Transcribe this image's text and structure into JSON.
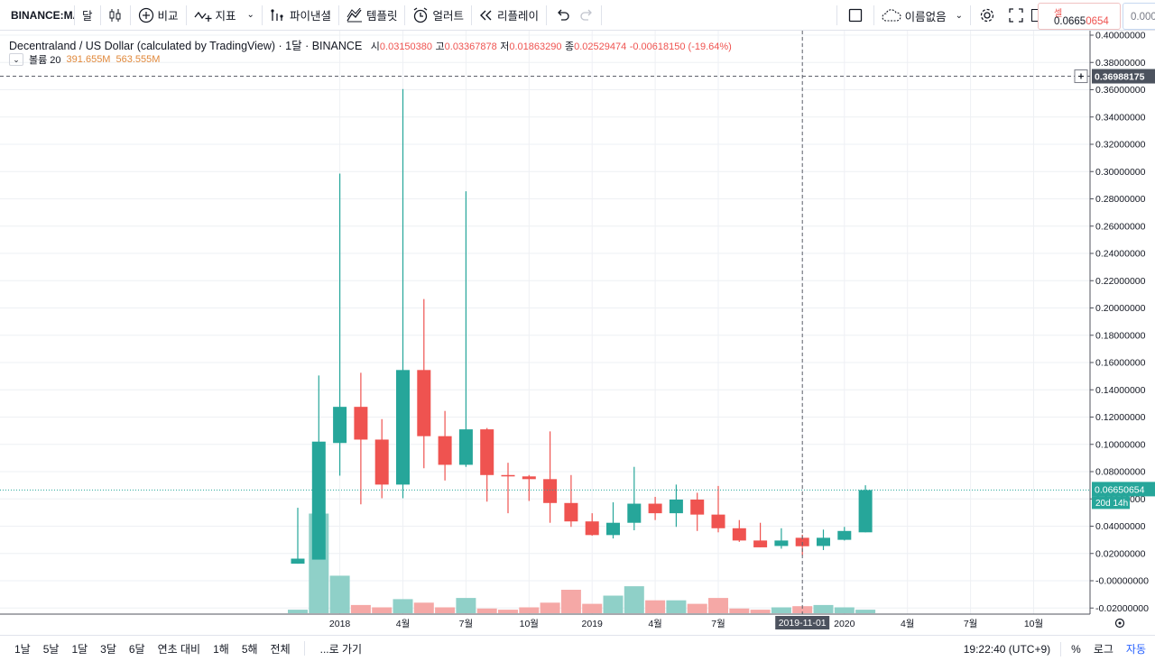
{
  "toolbar": {
    "symbol": "BINANCE:MANAUSD",
    "interval": "달",
    "compare": "비교",
    "indicators": "지표",
    "financials": "파이낸셜",
    "templates": "템플릿",
    "alert": "얼러트",
    "replay": "리플레이",
    "layout_name": "이름없음"
  },
  "quote": {
    "sell_label": "셀",
    "sell_price_prefix": "0.0665",
    "sell_price_highlight": "0654",
    "buy_price": "0.000"
  },
  "legend": {
    "title": "Decentraland / US Dollar (calculated by TradingView) · 1달 · BINANCE",
    "open_label": "시",
    "open": "0.03150380",
    "high_label": "고",
    "high": "0.03367878",
    "low_label": "저",
    "low": "0.01863290",
    "close_label": "종",
    "close": "0.02529474",
    "change": "-0.00618150 (-19.64%)",
    "volume_label": "볼륨 20",
    "volume_1": "391.655M",
    "volume_2": "563.555M"
  },
  "price_axis": {
    "crosshair_price": "0.36988175",
    "current_price": "0.06650654",
    "countdown": "20d 14h",
    "crosshair_date": "2019-11-01"
  },
  "bottombar": {
    "ranges": [
      "1날",
      "5날",
      "1달",
      "3달",
      "6달",
      "연초 대비",
      "1해",
      "5해",
      "전체"
    ],
    "goto": "...로 가기",
    "time": "19:22:40 (UTC+9)",
    "percent": "%",
    "log": "로그",
    "auto": "자동"
  },
  "colors": {
    "up": "#26a69a",
    "down": "#ef5350",
    "vol_up": "#8fd0c8",
    "vol_down": "#f5a8a6",
    "grid": "#eef0f4",
    "price_line": "#26a69a"
  },
  "chart_data": {
    "type": "candlestick",
    "x_tick_labels": [
      "2018",
      "4월",
      "7월",
      "10월",
      "2019",
      "4월",
      "7월",
      "2019-11-01",
      "2020",
      "4월",
      "7월",
      "10월"
    ],
    "y_tick_labels": [
      "-0.02000000",
      "-0.00000000",
      "0.02000000",
      "0.04000000",
      "0.06000000",
      "0.08000000",
      "0.10000000",
      "0.12000000",
      "0.14000000",
      "0.16000000",
      "0.18000000",
      "0.20000000",
      "0.22000000",
      "0.24000000",
      "0.26000000",
      "0.28000000",
      "0.30000000",
      "0.32000000",
      "0.34000000",
      "0.36000000",
      "0.38000000",
      "0.40000000"
    ],
    "ylim": [
      -0.02,
      0.4
    ],
    "grid": true,
    "candles": [
      {
        "date": "2017-11",
        "open": 0.0125,
        "high": 0.0535,
        "low": 0.0125,
        "close": 0.0162,
        "volume_level": 0.03
      },
      {
        "date": "2017-12",
        "open": 0.0155,
        "high": 0.1505,
        "low": 0.0155,
        "close": 0.102,
        "volume_level": 0.85
      },
      {
        "date": "2018-01",
        "open": 0.101,
        "high": 0.2985,
        "low": 0.077,
        "close": 0.1275,
        "volume_level": 0.32
      },
      {
        "date": "2018-02",
        "open": 0.1275,
        "high": 0.1525,
        "low": 0.056,
        "close": 0.1035,
        "volume_level": 0.07
      },
      {
        "date": "2018-03",
        "open": 0.1035,
        "high": 0.1185,
        "low": 0.0605,
        "close": 0.0705,
        "volume_level": 0.05
      },
      {
        "date": "2018-04",
        "open": 0.0705,
        "high": 0.3605,
        "low": 0.0605,
        "close": 0.1545,
        "volume_level": 0.12
      },
      {
        "date": "2018-05",
        "open": 0.1545,
        "high": 0.2065,
        "low": 0.0825,
        "close": 0.106,
        "volume_level": 0.09
      },
      {
        "date": "2018-06",
        "open": 0.106,
        "high": 0.1245,
        "low": 0.0735,
        "close": 0.085,
        "volume_level": 0.05
      },
      {
        "date": "2018-07",
        "open": 0.085,
        "high": 0.2855,
        "low": 0.0835,
        "close": 0.111,
        "volume_level": 0.13
      },
      {
        "date": "2018-08",
        "open": 0.111,
        "high": 0.112,
        "low": 0.058,
        "close": 0.0775,
        "volume_level": 0.04
      },
      {
        "date": "2018-09",
        "open": 0.0775,
        "high": 0.0865,
        "low": 0.0495,
        "close": 0.0765,
        "volume_level": 0.03
      },
      {
        "date": "2018-10",
        "open": 0.0765,
        "high": 0.0775,
        "low": 0.0585,
        "close": 0.0745,
        "volume_level": 0.05
      },
      {
        "date": "2018-11",
        "open": 0.0745,
        "high": 0.1095,
        "low": 0.0425,
        "close": 0.057,
        "volume_level": 0.09
      },
      {
        "date": "2018-12",
        "open": 0.057,
        "high": 0.0775,
        "low": 0.0395,
        "close": 0.0435,
        "volume_level": 0.2
      },
      {
        "date": "2019-01",
        "open": 0.0435,
        "high": 0.0495,
        "low": 0.033,
        "close": 0.0335,
        "volume_level": 0.08
      },
      {
        "date": "2019-02",
        "open": 0.0335,
        "high": 0.0575,
        "low": 0.031,
        "close": 0.0425,
        "volume_level": 0.15
      },
      {
        "date": "2019-03",
        "open": 0.0425,
        "high": 0.0835,
        "low": 0.037,
        "close": 0.0565,
        "volume_level": 0.23
      },
      {
        "date": "2019-04",
        "open": 0.0565,
        "high": 0.0615,
        "low": 0.0445,
        "close": 0.0495,
        "volume_level": 0.11
      },
      {
        "date": "2019-05",
        "open": 0.0495,
        "high": 0.0705,
        "low": 0.0395,
        "close": 0.0595,
        "volume_level": 0.11
      },
      {
        "date": "2019-06",
        "open": 0.0595,
        "high": 0.0645,
        "low": 0.0365,
        "close": 0.0485,
        "volume_level": 0.08
      },
      {
        "date": "2019-07",
        "open": 0.0485,
        "high": 0.0695,
        "low": 0.0355,
        "close": 0.0385,
        "volume_level": 0.13
      },
      {
        "date": "2019-08",
        "open": 0.0385,
        "high": 0.0445,
        "low": 0.0285,
        "close": 0.0295,
        "volume_level": 0.04
      },
      {
        "date": "2019-09",
        "open": 0.0295,
        "high": 0.0425,
        "low": 0.0245,
        "close": 0.0245,
        "volume_level": 0.03
      },
      {
        "date": "2019-10",
        "open": 0.0255,
        "high": 0.0385,
        "low": 0.0235,
        "close": 0.0295,
        "volume_level": 0.05
      },
      {
        "date": "2019-11",
        "open": 0.0315,
        "high": 0.0337,
        "low": 0.0186,
        "close": 0.0253,
        "volume_level": 0.06
      },
      {
        "date": "2019-12",
        "open": 0.0255,
        "high": 0.0375,
        "low": 0.0225,
        "close": 0.0315,
        "volume_level": 0.07
      },
      {
        "date": "2020-01",
        "open": 0.03,
        "high": 0.0395,
        "low": 0.0295,
        "close": 0.0365,
        "volume_level": 0.05
      },
      {
        "date": "2020-02",
        "open": 0.0355,
        "high": 0.07,
        "low": 0.0355,
        "close": 0.0665,
        "volume_level": 0.03
      }
    ]
  }
}
